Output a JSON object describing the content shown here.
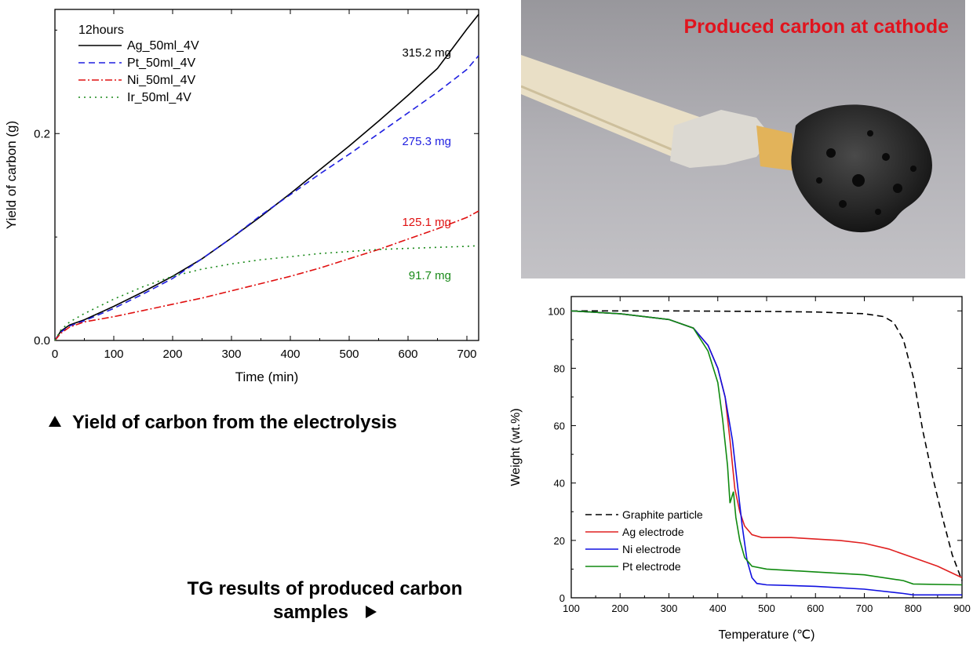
{
  "chart_data": [
    {
      "type": "line",
      "title": "",
      "xlabel": "Time (min)",
      "ylabel": "Yield of carbon (g)",
      "xlim": [
        0,
        720
      ],
      "ylim": [
        0,
        0.32
      ],
      "x_ticks": [
        "0",
        "100",
        "200",
        "300",
        "400",
        "500",
        "600",
        "700"
      ],
      "y_ticks": [
        "0.0",
        "0.2"
      ],
      "legend_title": "12hours",
      "legend_position": "top-left",
      "grid": false,
      "series": [
        {
          "name": "Ag_50ml_4V",
          "color": "#000000",
          "dash": "solid",
          "end_label": "315.2 mg",
          "x": [
            0,
            10,
            25,
            50,
            100,
            150,
            200,
            250,
            300,
            350,
            400,
            450,
            500,
            550,
            600,
            650,
            700,
            720
          ],
          "y": [
            0,
            0.009,
            0.015,
            0.02,
            0.033,
            0.047,
            0.062,
            0.079,
            0.099,
            0.12,
            0.142,
            0.165,
            0.188,
            0.212,
            0.237,
            0.263,
            0.301,
            0.3152
          ]
        },
        {
          "name": "Pt_50ml_4V",
          "color": "#1f1fe0",
          "dash": "dashed",
          "end_label": "275.3 mg",
          "x": [
            0,
            10,
            25,
            50,
            100,
            150,
            200,
            250,
            300,
            350,
            400,
            450,
            500,
            550,
            600,
            650,
            700,
            720
          ],
          "y": [
            0,
            0.008,
            0.014,
            0.019,
            0.031,
            0.045,
            0.06,
            0.079,
            0.099,
            0.121,
            0.141,
            0.161,
            0.18,
            0.2,
            0.22,
            0.24,
            0.262,
            0.2753
          ]
        },
        {
          "name": "Ni_50ml_4V",
          "color": "#e01010",
          "dash": "dashdot",
          "end_label": "125.1 mg",
          "x": [
            0,
            10,
            25,
            50,
            100,
            150,
            200,
            250,
            300,
            350,
            400,
            450,
            500,
            550,
            600,
            650,
            700,
            720
          ],
          "y": [
            0,
            0.007,
            0.013,
            0.018,
            0.023,
            0.029,
            0.035,
            0.041,
            0.048,
            0.055,
            0.062,
            0.07,
            0.079,
            0.088,
            0.098,
            0.108,
            0.119,
            0.1251
          ]
        },
        {
          "name": "Ir_50ml_4V",
          "color": "#1a8a1a",
          "dash": "dotted",
          "end_label": "91.7 mg",
          "x": [
            0,
            10,
            25,
            50,
            100,
            150,
            200,
            250,
            300,
            350,
            400,
            450,
            500,
            550,
            600,
            650,
            700,
            720
          ],
          "y": [
            0,
            0.01,
            0.018,
            0.026,
            0.04,
            0.052,
            0.062,
            0.069,
            0.074,
            0.078,
            0.081,
            0.084,
            0.086,
            0.088,
            0.089,
            0.09,
            0.091,
            0.0917
          ]
        }
      ]
    },
    {
      "type": "line",
      "title": "",
      "xlabel": "Temperature (℃)",
      "ylabel": "Weight (wt.%)",
      "xlim": [
        100,
        900
      ],
      "ylim": [
        0,
        105
      ],
      "x_ticks": [
        "100",
        "200",
        "300",
        "400",
        "500",
        "600",
        "700",
        "800",
        "900"
      ],
      "y_ticks": [
        "0",
        "20",
        "40",
        "60",
        "80",
        "100"
      ],
      "legend_position": "bottom-left",
      "grid": false,
      "series": [
        {
          "name": "Graphite particle",
          "color": "#000000",
          "dash": "dashed",
          "x": [
            100,
            300,
            500,
            600,
            700,
            740,
            760,
            780,
            800,
            820,
            840,
            860,
            880,
            900
          ],
          "y": [
            100,
            100,
            99.8,
            99.6,
            99,
            98,
            96,
            90,
            77,
            58,
            42,
            28,
            15,
            6
          ]
        },
        {
          "name": "Ag electrode",
          "color": "#e02020",
          "dash": "solid",
          "x": [
            100,
            200,
            300,
            350,
            380,
            400,
            415,
            425,
            435,
            445,
            455,
            470,
            490,
            550,
            650,
            700,
            750,
            800,
            850,
            900
          ],
          "y": [
            100,
            99,
            97,
            94,
            88,
            80,
            70,
            55,
            38,
            30,
            25,
            22,
            21,
            21,
            20,
            19,
            17,
            14,
            11,
            7
          ]
        },
        {
          "name": "Ni electrode",
          "color": "#1010e0",
          "dash": "solid",
          "x": [
            100,
            200,
            300,
            350,
            380,
            400,
            415,
            430,
            440,
            450,
            460,
            470,
            480,
            500,
            600,
            700,
            780,
            800,
            900
          ],
          "y": [
            100,
            99,
            97,
            94,
            88,
            80,
            70,
            55,
            40,
            25,
            13,
            7,
            5,
            4.5,
            4,
            3,
            1.5,
            1,
            1
          ]
        },
        {
          "name": "Pt electrode",
          "color": "#108a10",
          "dash": "solid",
          "x": [
            100,
            200,
            300,
            350,
            380,
            400,
            410,
            420,
            425,
            432,
            437,
            445,
            455,
            470,
            500,
            600,
            700,
            780,
            800,
            900
          ],
          "y": [
            100,
            99,
            97,
            94,
            86,
            75,
            62,
            46,
            33,
            37,
            28,
            20,
            14,
            11,
            10,
            9,
            8,
            6,
            4.8,
            4.5
          ]
        }
      ]
    }
  ],
  "photo": {
    "title": "Produced carbon at cathode",
    "title_color": "#e0141e"
  },
  "captions": {
    "yield": "Yield of carbon from the electrolysis",
    "tg_line1": "TG results of produced carbon",
    "tg_line2": "samples"
  }
}
